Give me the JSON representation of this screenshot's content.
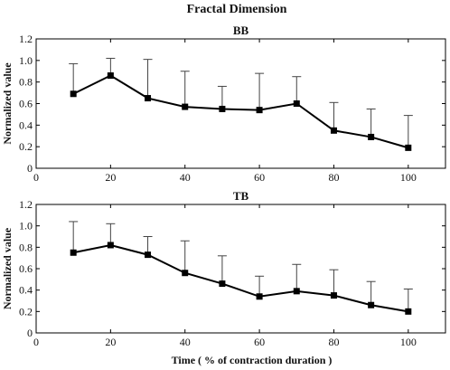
{
  "figure_title": "Fractal Dimension",
  "chart_data": [
    {
      "type": "line",
      "title": "BB",
      "xlabel": "",
      "ylabel": "Normalized value",
      "xlim": [
        0,
        110
      ],
      "ylim": [
        0,
        1.2
      ],
      "xticks": [
        0,
        20,
        40,
        60,
        80,
        100
      ],
      "yticks": [
        0,
        0.2,
        0.4,
        0.6,
        0.8,
        1.0,
        1.2
      ],
      "xtick_labels": [
        "0",
        "20",
        "40",
        "60",
        "80",
        "100"
      ],
      "ytick_labels": [
        "0",
        "0.2",
        "0.4",
        "0.6",
        "0.8",
        "1.0",
        "1.2"
      ],
      "x": [
        10,
        20,
        30,
        40,
        50,
        60,
        70,
        80,
        90,
        100
      ],
      "values": [
        0.69,
        0.86,
        0.65,
        0.57,
        0.55,
        0.54,
        0.6,
        0.35,
        0.29,
        0.19
      ],
      "error_upper": [
        0.97,
        1.02,
        1.01,
        0.9,
        0.76,
        0.88,
        0.85,
        0.61,
        0.55,
        0.49
      ],
      "marker": "square",
      "color": "#000000",
      "grid": false
    },
    {
      "type": "line",
      "title": "TB",
      "xlabel": "Time ( % of contraction duration )",
      "ylabel": "Normalized value",
      "xlim": [
        0,
        110
      ],
      "ylim": [
        0,
        1.2
      ],
      "xticks": [
        0,
        20,
        40,
        60,
        80,
        100
      ],
      "yticks": [
        0,
        0.2,
        0.4,
        0.6,
        0.8,
        1.0,
        1.2
      ],
      "xtick_labels": [
        "0",
        "20",
        "40",
        "60",
        "80",
        "100"
      ],
      "ytick_labels": [
        "0",
        "0.2",
        "0.4",
        "0.6",
        "0.8",
        "1.0",
        "1.2"
      ],
      "x": [
        10,
        20,
        30,
        40,
        50,
        60,
        70,
        80,
        90,
        100
      ],
      "values": [
        0.75,
        0.82,
        0.73,
        0.56,
        0.46,
        0.34,
        0.39,
        0.35,
        0.26,
        0.2
      ],
      "error_upper": [
        1.04,
        1.02,
        0.9,
        0.86,
        0.72,
        0.53,
        0.64,
        0.59,
        0.48,
        0.41
      ],
      "marker": "square",
      "color": "#000000",
      "grid": false
    }
  ]
}
